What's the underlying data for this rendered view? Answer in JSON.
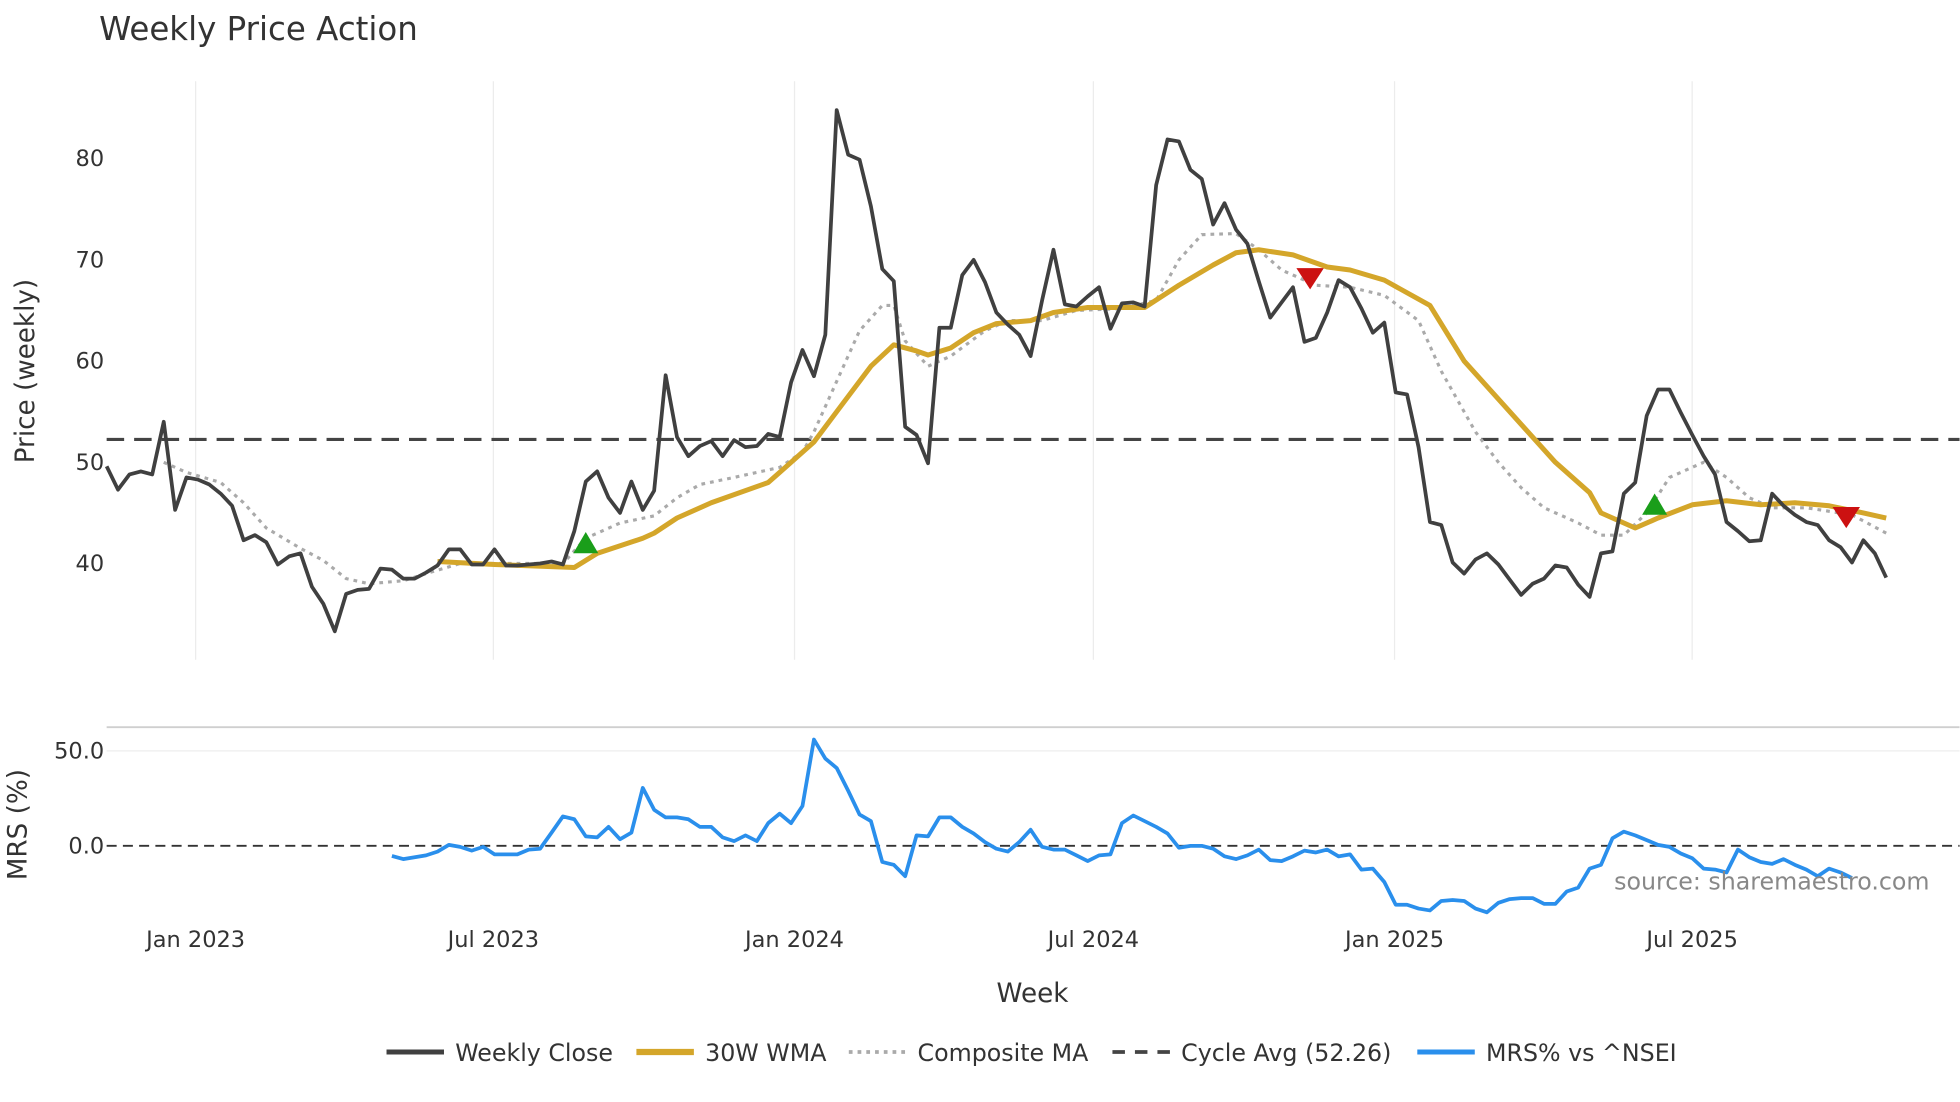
{
  "chart_data": {
    "type": "line",
    "title": "Weekly Price Action",
    "xlabel": "Week",
    "x_unit": "week index (0 = first week, ~early Nov 2022; weekly spacing)",
    "x_ticks": [
      {
        "label": "Jan 2023",
        "week": 7.8
      },
      {
        "label": "Jul 2023",
        "week": 33.9
      },
      {
        "label": "Jan 2024",
        "week": 60.3
      },
      {
        "label": "Jul 2024",
        "week": 86.5
      },
      {
        "label": "Jan 2025",
        "week": 112.9
      },
      {
        "label": "Jul 2025",
        "week": 138.99
      }
    ],
    "price_panel": {
      "ylabel": "Price (weekly)",
      "ylim": [
        29.7,
        87
      ],
      "y_ticks": [
        "40",
        "50",
        "60",
        "70",
        "80"
      ],
      "y_tick_values": [
        40,
        50,
        60,
        70,
        80
      ],
      "cycle_avg": 52.26,
      "series": [
        {
          "name": "Weekly Close",
          "color": "#404040",
          "style": "solid",
          "values": [
            49.6,
            47.3,
            48.8,
            49.1,
            48.8,
            54,
            45.3,
            48.5,
            48.3,
            47.8,
            46.9,
            45.7,
            42.3,
            42.8,
            42.1,
            39.9,
            40.7,
            41,
            37.7,
            36,
            33.3,
            37,
            37.4,
            37.5,
            39.5,
            39.4,
            38.5,
            38.5,
            39.1,
            39.8,
            41.4,
            41.4,
            39.9,
            39.9,
            41.4,
            39.8,
            39.8,
            39.9,
            40,
            40.2,
            39.9,
            43.2,
            48.1,
            49.1,
            46.5,
            45,
            48.1,
            45.3,
            47.2,
            58.6,
            52.5,
            50.6,
            51.6,
            52.1,
            50.6,
            52.2,
            51.5,
            51.6,
            52.8,
            52.5,
            57.9,
            61.1,
            58.5,
            62.6,
            84.8,
            80.4,
            79.9,
            75.3,
            69.1,
            67.9,
            53.5,
            52.7,
            49.9,
            63.3,
            63.3,
            68.5,
            70,
            67.8,
            64.8,
            63.6,
            62.6,
            60.5,
            66,
            71,
            65.6,
            65.4,
            66.4,
            67.3,
            63.2,
            65.7,
            65.8,
            65.4,
            77.4,
            81.9,
            81.7,
            78.9,
            78,
            73.5,
            75.6,
            73,
            71.6,
            67.9,
            64.3,
            65.8,
            67.3,
            61.9,
            62.3,
            64.8,
            68,
            67.3,
            65.2,
            62.8,
            63.8,
            56.9,
            56.7,
            51.5,
            44.1,
            43.8,
            40.1,
            39,
            40.4,
            41,
            39.9,
            38.4,
            36.9,
            38,
            38.5,
            39.8,
            39.6,
            37.9,
            36.7,
            41,
            41.2,
            46.9,
            48,
            54.6,
            57.2,
            57.2,
            54.9,
            52.7,
            50.6,
            48.8,
            44.1,
            43.2,
            42.2,
            42.3,
            46.9,
            45.7,
            44.8,
            44.1,
            43.8,
            42.3,
            41.6,
            40.1,
            42.3,
            41,
            38.6
          ]
        },
        {
          "name": "30W WMA",
          "color": "#d4a62a",
          "style": "solid",
          "points": [
            [
              29,
              40.2
            ],
            [
              34,
              39.9
            ],
            [
              41,
              39.6
            ],
            [
              43,
              41
            ],
            [
              47,
              42.5
            ],
            [
              48,
              43
            ],
            [
              50,
              44.5
            ],
            [
              53,
              46
            ],
            [
              58,
              48
            ],
            [
              59,
              49
            ],
            [
              62,
              52
            ],
            [
              64,
              55
            ],
            [
              67,
              59.5
            ],
            [
              69,
              61.6
            ],
            [
              71,
              61
            ],
            [
              72,
              60.6
            ],
            [
              74,
              61.3
            ],
            [
              76,
              62.8
            ],
            [
              78,
              63.7
            ],
            [
              81,
              64
            ],
            [
              83,
              64.8
            ],
            [
              86,
              65.3
            ],
            [
              91,
              65.3
            ],
            [
              94,
              67.5
            ],
            [
              97,
              69.5
            ],
            [
              99,
              70.7
            ],
            [
              101,
              71
            ],
            [
              104,
              70.5
            ],
            [
              107,
              69.3
            ],
            [
              109,
              69
            ],
            [
              112,
              68
            ],
            [
              116,
              65.5
            ],
            [
              119,
              60
            ],
            [
              123,
              55
            ],
            [
              127,
              50
            ],
            [
              130,
              47
            ],
            [
              131,
              45
            ],
            [
              134,
              43.5
            ],
            [
              136,
              44.5
            ],
            [
              139,
              45.8
            ],
            [
              142,
              46.2
            ],
            [
              145,
              45.8
            ],
            [
              148,
              46
            ],
            [
              151,
              45.7
            ],
            [
              154,
              45
            ],
            [
              156,
              44.5
            ]
          ]
        },
        {
          "name": "Composite MA",
          "color": "#aaaaaa",
          "style": "dotted",
          "points": [
            [
              5,
              50
            ],
            [
              7,
              49
            ],
            [
              10,
              48
            ],
            [
              12,
              46
            ],
            [
              14,
              43.5
            ],
            [
              17,
              41.5
            ],
            [
              19,
              40.3
            ],
            [
              21,
              38.5
            ],
            [
              23,
              38
            ],
            [
              26,
              38.3
            ],
            [
              28,
              39
            ],
            [
              31,
              40
            ],
            [
              37,
              40
            ],
            [
              40,
              40
            ],
            [
              42,
              42.5
            ],
            [
              45,
              44
            ],
            [
              48,
              44.7
            ],
            [
              50,
              46.5
            ],
            [
              52,
              47.8
            ],
            [
              55,
              48.5
            ],
            [
              59,
              49.5
            ],
            [
              61,
              51
            ],
            [
              62,
              53
            ],
            [
              64,
              58
            ],
            [
              66,
              63
            ],
            [
              68,
              65.5
            ],
            [
              69,
              65.5
            ],
            [
              70,
              62
            ],
            [
              72,
              59.5
            ],
            [
              74,
              60.5
            ],
            [
              77,
              63
            ],
            [
              79,
              64
            ],
            [
              82,
              64
            ],
            [
              85,
              65
            ],
            [
              89,
              65.2
            ],
            [
              92,
              66
            ],
            [
              94,
              70
            ],
            [
              96,
              72.5
            ],
            [
              99,
              72.6
            ],
            [
              101,
              71
            ],
            [
              103,
              69
            ],
            [
              106,
              67.5
            ],
            [
              109,
              67.3
            ],
            [
              112,
              66.5
            ],
            [
              115,
              64
            ],
            [
              117,
              59
            ],
            [
              120,
              53
            ],
            [
              122,
              50
            ],
            [
              124,
              47.5
            ],
            [
              126,
              45.5
            ],
            [
              129,
              44
            ],
            [
              131,
              42.8
            ],
            [
              133,
              42.8
            ],
            [
              135,
              45
            ],
            [
              137,
              48.5
            ],
            [
              140,
              50
            ],
            [
              142,
              48.5
            ],
            [
              144,
              46.5
            ],
            [
              146,
              45.5
            ],
            [
              149,
              45.5
            ],
            [
              153,
              44.8
            ],
            [
              156,
              43
            ]
          ]
        }
      ],
      "signals": [
        {
          "type": "buy",
          "color": "#1a9e1a",
          "week": 42,
          "value": 42
        },
        {
          "type": "sell",
          "color": "#cc1111",
          "week": 105.5,
          "value": 68.2
        },
        {
          "type": "buy",
          "color": "#1a9e1a",
          "week": 135.7,
          "value": 45.8
        },
        {
          "type": "sell",
          "color": "#cc1111",
          "week": 152.5,
          "value": 44.6
        }
      ]
    },
    "mrs_panel": {
      "ylabel": "MRS (%)",
      "ylim": [
        -45,
        62
      ],
      "y_ticks": [
        "50.0",
        "0.0"
      ],
      "y_tick_values": [
        50,
        0
      ],
      "series": {
        "name": "MRS% vs ^NSEI",
        "color": "#2a8fec",
        "start_week": 25,
        "values": [
          -5.3,
          -7,
          -6,
          -5,
          -3,
          0.5,
          -0.5,
          -2.5,
          -0.5,
          -4.5,
          -4.5,
          -4.5,
          -2,
          -1.5,
          7,
          15.5,
          14,
          5,
          4.5,
          10,
          3.5,
          7,
          30.5,
          19,
          15,
          15,
          14,
          10,
          10,
          4.5,
          2.5,
          5.5,
          2.5,
          12,
          17,
          12,
          21,
          56,
          46,
          41,
          29,
          16.5,
          13,
          -8.5,
          -10,
          -16,
          5.5,
          5,
          15,
          15,
          10,
          6.5,
          2,
          -1.5,
          -3,
          2,
          8.5,
          -0.5,
          -2,
          -2,
          -5,
          -8,
          -5,
          -4.5,
          12,
          16,
          13,
          10,
          6.5,
          -1,
          0,
          0,
          -1.5,
          -5.5,
          -7,
          -5,
          -2,
          -7.5,
          -8,
          -5.5,
          -2.5,
          -3.5,
          -2,
          -5.5,
          -4.5,
          -12.5,
          -12,
          -19,
          -31,
          -31,
          -33,
          -34,
          -29,
          -28.5,
          -29,
          -33,
          -35,
          -30,
          -28,
          -27.5,
          -27.5,
          -30.5,
          -30.5,
          -24,
          -22,
          -12,
          -10,
          4,
          7.5,
          5.5,
          3,
          0.5,
          -0.5,
          -4,
          -6.5,
          -12,
          -12.5,
          -14,
          -2,
          -6,
          -8.5,
          -9.5,
          -7,
          -10,
          -12.5,
          -16,
          -12,
          -14,
          -17
        ]
      }
    },
    "legend": {
      "placement": "bottom",
      "items": [
        "Weekly Close",
        "30W WMA",
        "Composite MA",
        "Cycle Avg (52.26)",
        "MRS% vs ^NSEI"
      ]
    },
    "source": "source: sharemaestro.com"
  }
}
